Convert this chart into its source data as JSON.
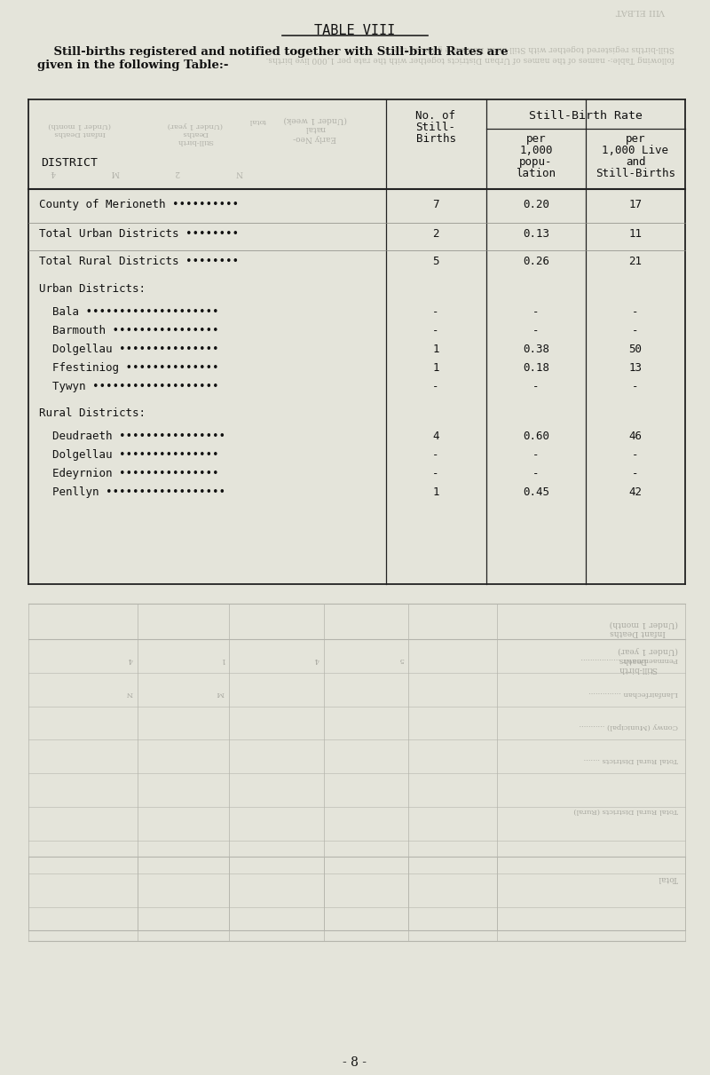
{
  "title": "TABLE VIII",
  "subtitle_line1": "    Still-births registered and notified together with Still-birth Rates are",
  "subtitle_line2": "given in the following Table:-",
  "bg_color": "#e4e4da",
  "col_header_district": "DISTRICT",
  "header_sbr": "Still-Birth Rate",
  "rows": [
    {
      "district": "County of Merioneth ••••••••••",
      "births": "7",
      "per1000pop": "0.20",
      "per1000live": "17",
      "indent": 0,
      "section_header": false
    },
    {
      "district": "Total Urban Districts ••••••••",
      "births": "2",
      "per1000pop": "0.13",
      "per1000live": "11",
      "indent": 0,
      "section_header": false
    },
    {
      "district": "Total Rural Districts ••••••••",
      "births": "5",
      "per1000pop": "0.26",
      "per1000live": "21",
      "indent": 0,
      "section_header": false
    },
    {
      "district": "Urban Districts:",
      "births": "",
      "per1000pop": "",
      "per1000live": "",
      "indent": 0,
      "section_header": true
    },
    {
      "district": "  Bala ••••••••••••••••••••",
      "births": "-",
      "per1000pop": "-",
      "per1000live": "-",
      "indent": 1,
      "section_header": false
    },
    {
      "district": "  Barmouth ••••••••••••••••",
      "births": "-",
      "per1000pop": "-",
      "per1000live": "-",
      "indent": 1,
      "section_header": false
    },
    {
      "district": "  Dolgellau •••••••••••••••",
      "births": "1",
      "per1000pop": "0.38",
      "per1000live": "50",
      "indent": 1,
      "section_header": false
    },
    {
      "district": "  Ffestiniog ••••••••••••••",
      "births": "1",
      "per1000pop": "0.18",
      "per1000live": "13",
      "indent": 1,
      "section_header": false
    },
    {
      "district": "  Tywyn •••••••••••••••••••",
      "births": "-",
      "per1000pop": "-",
      "per1000live": "-",
      "indent": 1,
      "section_header": false
    },
    {
      "district": "Rural Districts:",
      "births": "",
      "per1000pop": "",
      "per1000live": "",
      "indent": 0,
      "section_header": true
    },
    {
      "district": "  Deudraeth ••••••••••••••••",
      "births": "4",
      "per1000pop": "0.60",
      "per1000live": "46",
      "indent": 1,
      "section_header": false
    },
    {
      "district": "  Dolgellau •••••••••••••••",
      "births": "-",
      "per1000pop": "-",
      "per1000live": "-",
      "indent": 1,
      "section_header": false
    },
    {
      "district": "  Edeyrnion •••••••••••••••",
      "births": "-",
      "per1000pop": "-",
      "per1000live": "-",
      "indent": 1,
      "section_header": false
    },
    {
      "district": "  Penllyn ••••••••••••••••••",
      "births": "1",
      "per1000pop": "0.45",
      "per1000live": "42",
      "indent": 1,
      "section_header": false
    }
  ],
  "ghost_text_right": [
    "Penmaenmawr ...............",
    "Llanfairfechan ...........",
    "Conwy (Municipal) .......",
    "Total Rural Districts ..."
  ],
  "ghost_header_left": "Infant Deaths\n(Under 1 month)",
  "ghost_header_mid1": "Still-birth\nDeaths\n(Under 1 year)",
  "ghost_header_mid2": "Early Neo-\nnatal\n(Under 1 week)",
  "page_number": "- 8 -"
}
